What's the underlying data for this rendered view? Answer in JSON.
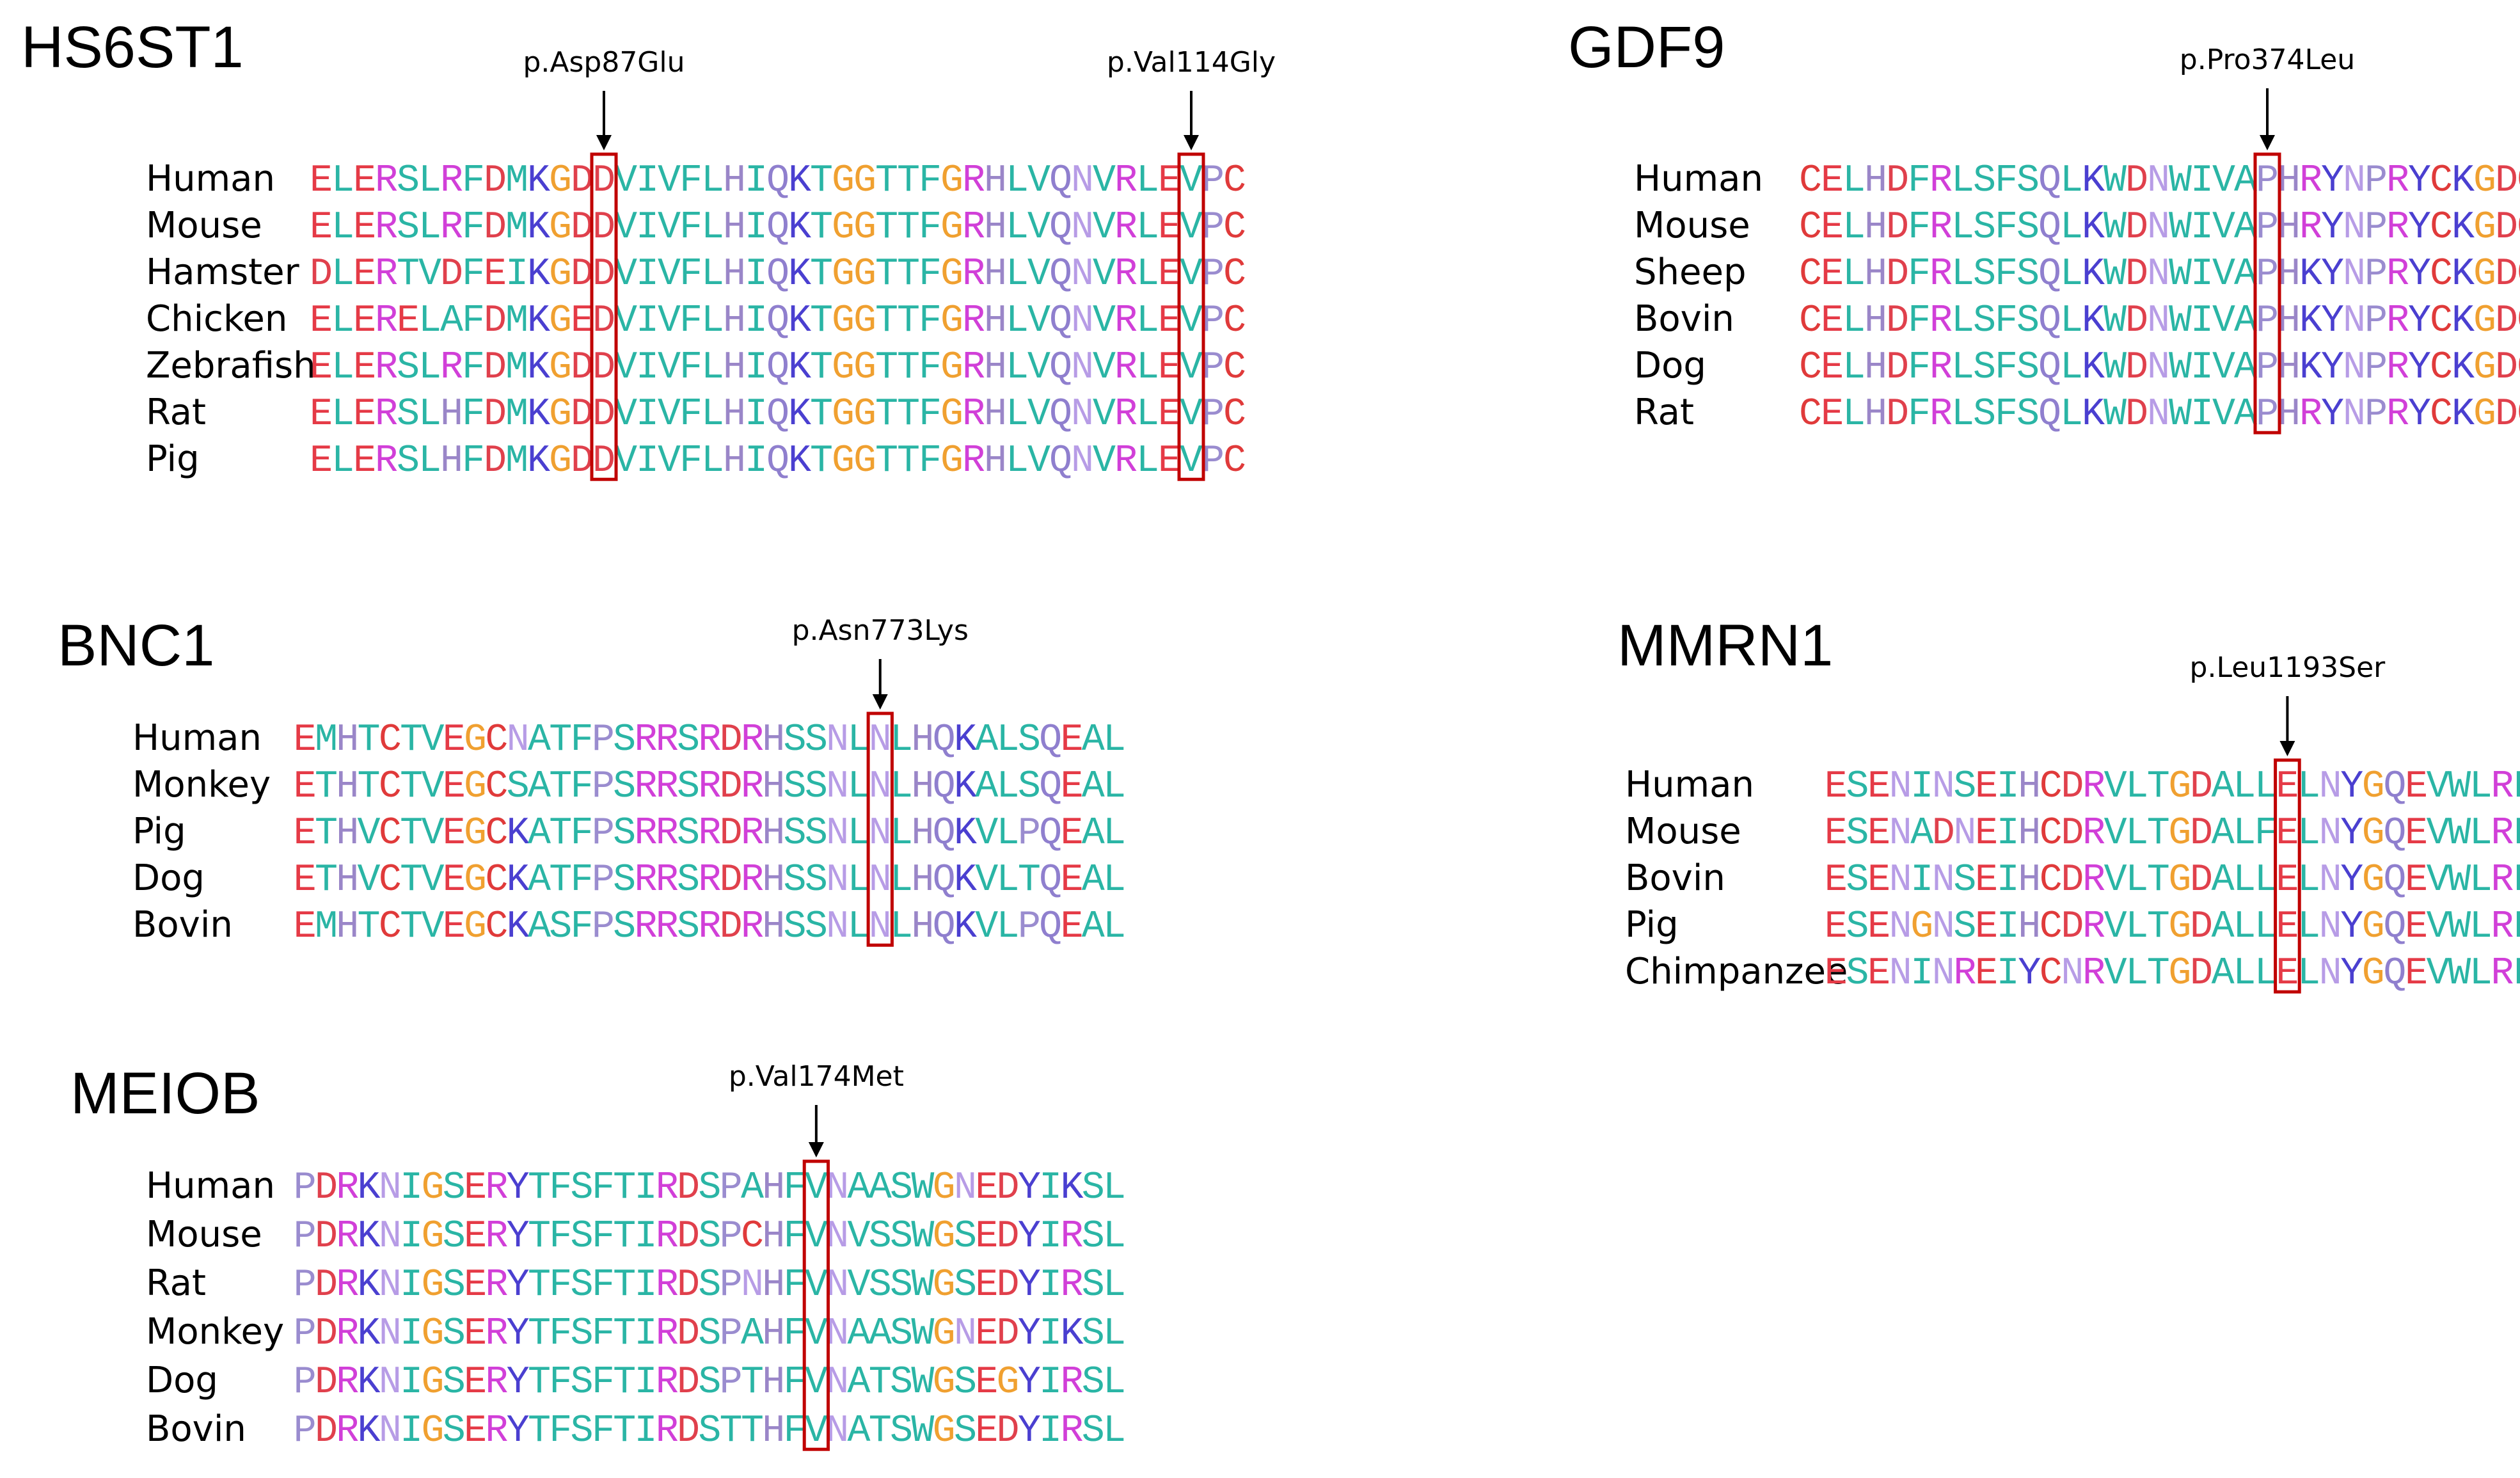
{
  "colors": {
    "box": "#C00000",
    "arrow": "#000000",
    "residue": {
      "A": "#2AB5A5",
      "C": "#E03A3A",
      "D": "#E0404C",
      "E": "#E53A46",
      "F": "#2AB5A5",
      "G": "#F0A030",
      "H": "#9A86C8",
      "I": "#2AB5A5",
      "K": "#4A3FD0",
      "L": "#2AB5A5",
      "M": "#2AB5A5",
      "N": "#B79CE6",
      "P": "#9A8CCF",
      "Q": "#8F7FCE",
      "R": "#D13FD8",
      "S": "#2AB5A5",
      "T": "#2AB5A5",
      "V": "#2AB5A5",
      "W": "#2AB5A5",
      "Y": "#4A3FD0"
    }
  },
  "panels": [
    {
      "id": "hs6st1",
      "gene": "HS6ST1",
      "mutations": [
        "p.Asp87Glu",
        "p.Val114Gly"
      ],
      "alignment": [
        {
          "species": "Human",
          "sequence": "ELERSLRFDMKGDDVIVFLHIQKTGGTTFGRHLVQNVRLEVPC"
        },
        {
          "species": "Mouse",
          "sequence": "ELERSLRFDMKGDDVIVFLHIQKTGGTTFGRHLVQNVRLEVPC"
        },
        {
          "species": "Hamster",
          "sequence": "DLERTVDFEIKGDDVIVFLHIQKTGGTTFGRHLVQNVRLEVPC"
        },
        {
          "species": "Chicken",
          "sequence": "ELERELAFDMKGEDVIVFLHIQKTGGTTFGRHLVQNVRLEVPC"
        },
        {
          "species": "Zebrafish",
          "sequence": "ELERSLRFDMKGDDVIVFLHIQKTGGTTFGRHLVQNVRLEVPC"
        },
        {
          "species": "Rat",
          "sequence": "ELERSLHFDMKGDDVIVFLHIQKTGGTTFGRHLVQNVRLEVPC"
        },
        {
          "species": "Pig",
          "sequence": "ELERSLHFDMKGDDVIVFLHIQKTGGTTFGRHLVQNVRLEVPC"
        }
      ]
    },
    {
      "id": "gdf9",
      "gene": "GDF9",
      "mutations": [
        "p.Pro374Leu"
      ],
      "alignment": [
        {
          "species": "Human",
          "sequence": "CELHDFRLSFSQLKWDNWIVAPHRYNPRYCKGDC"
        },
        {
          "species": "Mouse",
          "sequence": "CELHDFRLSFSQLKWDNWIVAPHRYNPRYCKGDC"
        },
        {
          "species": "Sheep",
          "sequence": "CELHDFRLSFSQLKWDNWIVAPHKYNPRYCKGDC"
        },
        {
          "species": "Bovin",
          "sequence": "CELHDFRLSFSQLKWDNWIVAPHKYNPRYCKGDC"
        },
        {
          "species": "Dog",
          "sequence": "CELHDFRLSFSQLKWDNWIVAPHKYNPRYCKGDC"
        },
        {
          "species": "Rat",
          "sequence": "CELHDFRLSFSQLKWDNWIVAPHRYNPRYCKGDC"
        }
      ]
    },
    {
      "id": "bnc1",
      "gene": "BNC1",
      "mutations": [
        "p.Asn773Lys"
      ],
      "alignment": [
        {
          "species": "Human",
          "sequence": "EMHTCTVEGCNATFPSRRSRDRHSSNLNLHQKALSQEAL"
        },
        {
          "species": "Monkey",
          "sequence": "ETHTCTVEGCSATFPSRRSRDRHSSNLNLHQKALSQEAL"
        },
        {
          "species": "Pig",
          "sequence": "ETHVCTVEGCKATFPSRRSRDRHSSNLNLHQKVLPQEAL"
        },
        {
          "species": "Dog",
          "sequence": "ETHVCTVEGCKATFPSRRSRDRHSSNLNLHQKVLTQEAL"
        },
        {
          "species": "Bovin",
          "sequence": "EMHTCTVEGCKASFPSRRSRDRHSSNLNLHQKVLPQEAL"
        }
      ]
    },
    {
      "id": "mmrn1",
      "gene": "MMRN1",
      "mutations": [
        "p.Leu1193Ser"
      ],
      "alignment": [
        {
          "species": "Human",
          "sequence": "ESENINSEIHCDRVLTGDALLELNYGQEVWLRL"
        },
        {
          "species": "Mouse",
          "sequence": "ESENADNEIHCDRVLTGDALFELNYGQEVWLRL"
        },
        {
          "species": "Bovin",
          "sequence": "ESENINSEIHCDRVLTGDALLELNYGQEVWLRL"
        },
        {
          "species": "Pig",
          "sequence": "ESENGNSEIHCDRVLTGDALLELNYGQEVWLRL"
        },
        {
          "species": "Chimpanzee",
          "sequence": "ESENINREIYCNRVLTGDALLELNYGQEVWLRL"
        }
      ]
    },
    {
      "id": "meiob",
      "gene": "MEIOB",
      "mutations": [
        "p.Val174Met"
      ],
      "alignment": [
        {
          "species": "Human",
          "sequence": "PDRKNIGSERYTFSFTIRDSPAHFVNAASWGNEDYIKSL"
        },
        {
          "species": "Mouse",
          "sequence": "PDRKNIGSERYTFSFTIRDSPCHFVNVSSWGSEDYIRSL"
        },
        {
          "species": "Rat",
          "sequence": "PDRKNIGSERYTFSFTIRDSPNHFVNVSSWGSEDYIRSL"
        },
        {
          "species": "Monkey",
          "sequence": "PDRKNIGSERYTFSFTIRDSPAHFVNAASWGNEDYIKSL"
        },
        {
          "species": "Dog",
          "sequence": "PDRKNIGSERYTFSFTIRDSPTHFVNATSWGSEGYIRSL"
        },
        {
          "species": "Bovin",
          "sequence": "PDRKNIGSERYTFSFTIRDSTTHFVNATSWGSEDYIRSL"
        }
      ]
    }
  ]
}
